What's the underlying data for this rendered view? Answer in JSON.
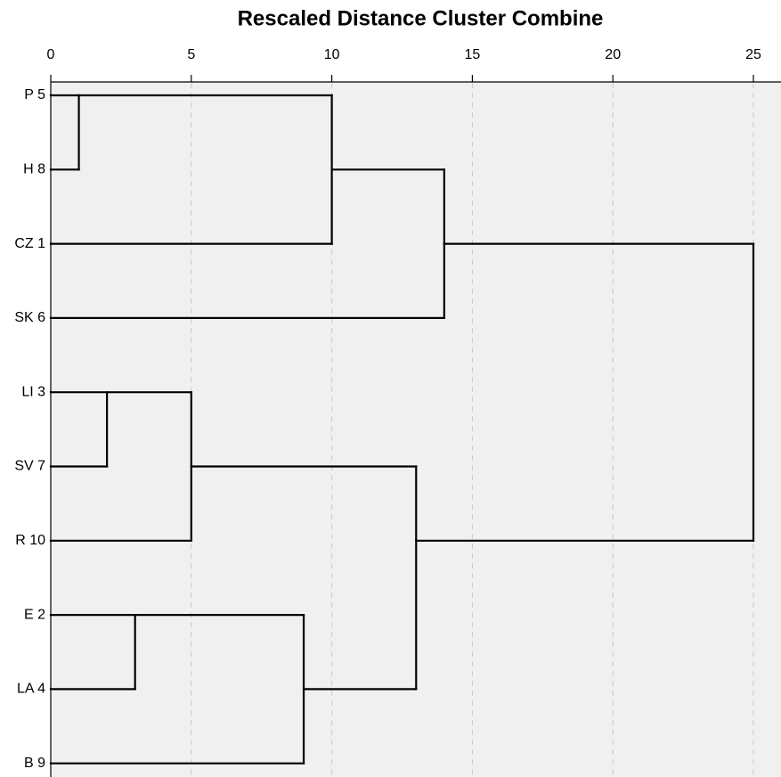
{
  "chart_data": {
    "type": "dendrogram",
    "title": "Rescaled Distance Cluster Combine",
    "xlim": [
      0,
      25
    ],
    "xticks": [
      0,
      5,
      10,
      15,
      20,
      25
    ],
    "grid": true,
    "tree": {
      "height": 25,
      "children": [
        {
          "height": 14,
          "children": [
            {
              "height": 10,
              "children": [
                {
                  "height": 1,
                  "children": [
                    {
                      "label": "P 5"
                    },
                    {
                      "label": "H 8"
                    }
                  ]
                },
                {
                  "label": "CZ 1"
                }
              ]
            },
            {
              "label": "SK 6"
            }
          ]
        },
        {
          "height": 13,
          "children": [
            {
              "height": 5,
              "children": [
                {
                  "height": 2,
                  "children": [
                    {
                      "label": "LI 3"
                    },
                    {
                      "label": "SV 7"
                    }
                  ]
                },
                {
                  "label": "R 10"
                }
              ]
            },
            {
              "height": 9,
              "children": [
                {
                  "height": 3,
                  "children": [
                    {
                      "label": "E 2"
                    },
                    {
                      "label": "LA 4"
                    }
                  ]
                },
                {
                  "label": "B 9"
                }
              ]
            }
          ]
        }
      ]
    }
  }
}
